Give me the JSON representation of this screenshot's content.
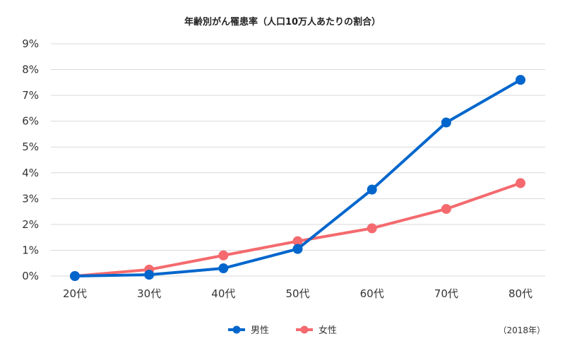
{
  "chart_data": {
    "type": "line",
    "title": "年齢別がん罹患率（人口10万人あたりの割合）",
    "categories": [
      "20代",
      "30代",
      "40代",
      "50代",
      "60代",
      "70代",
      "80代"
    ],
    "series": [
      {
        "name": "男性",
        "color": "#0066cc",
        "values": [
          0.0,
          0.05,
          0.3,
          1.05,
          3.35,
          5.95,
          7.6
        ]
      },
      {
        "name": "女性",
        "color": "#f46a6e",
        "values": [
          0.0,
          0.25,
          0.8,
          1.35,
          1.85,
          2.6,
          3.6
        ]
      }
    ],
    "ylim": [
      0,
      9
    ],
    "yticks": [
      "0%",
      "1%",
      "2%",
      "3%",
      "4%",
      "5%",
      "6%",
      "7%",
      "8%",
      "9%"
    ],
    "grid": true,
    "legend_position": "bottom",
    "note": "（2018年）"
  }
}
